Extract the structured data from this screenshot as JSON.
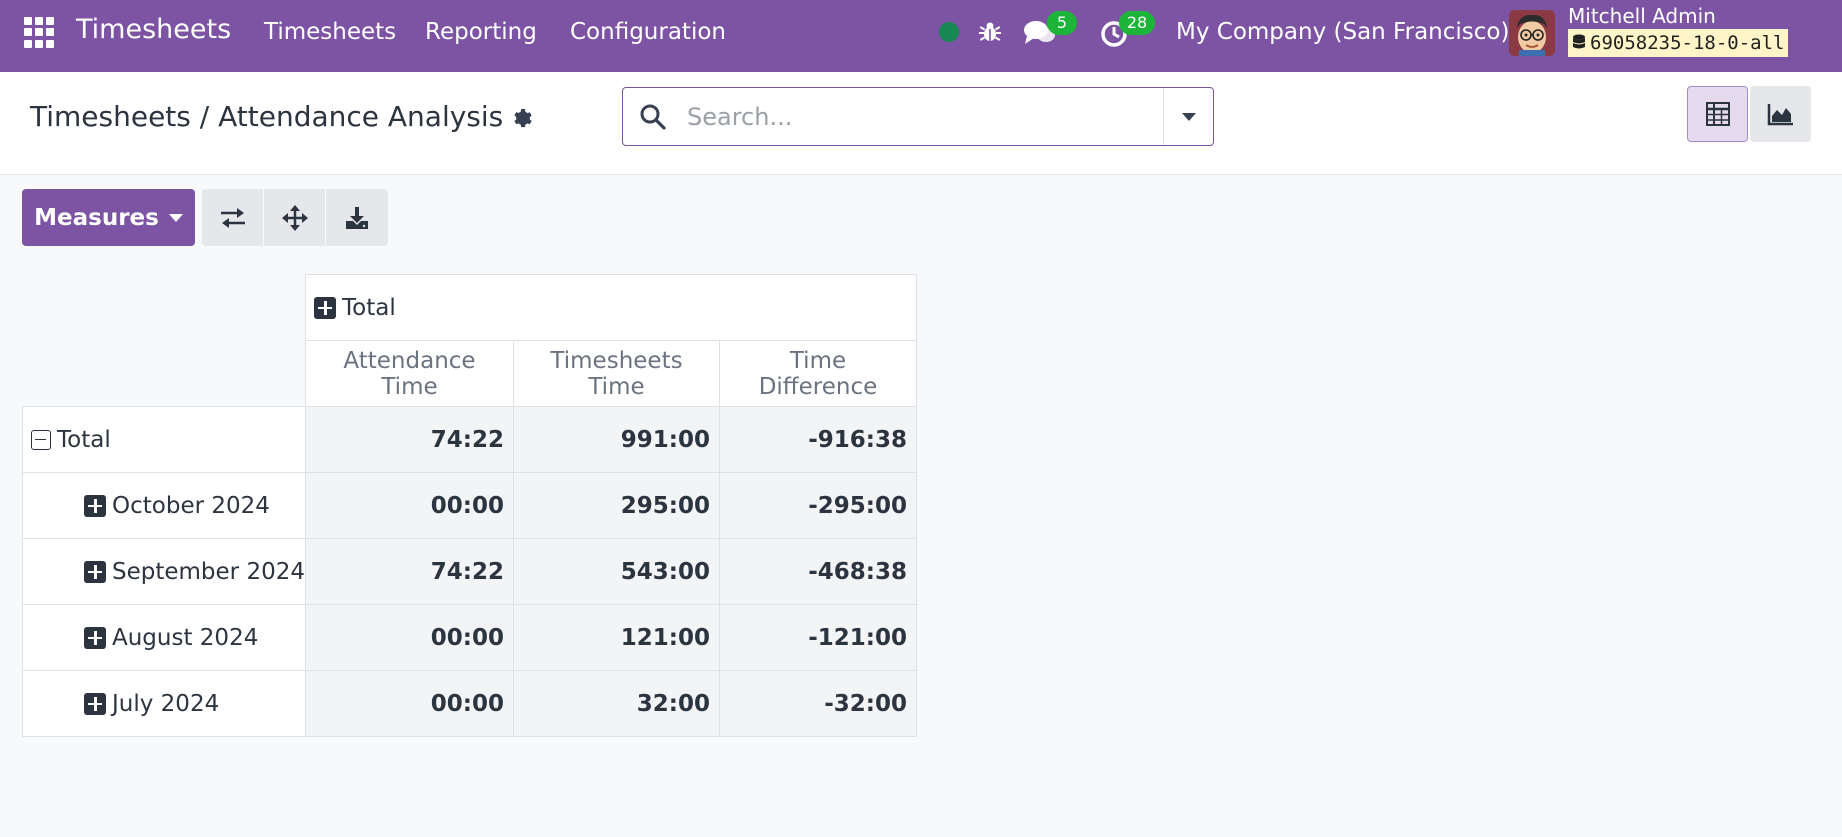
{
  "navbar": {
    "brand": "Timesheets",
    "menu": [
      "Timesheets",
      "Reporting",
      "Configuration"
    ],
    "messages_count": "5",
    "activities_count": "28",
    "company": "My Company (San Francisco)",
    "user_name": "Mitchell Admin",
    "database": "69058235-18-0-all"
  },
  "control_panel": {
    "breadcrumb": "Timesheets / Attendance Analysis",
    "search_placeholder": "Search..."
  },
  "toolbar": {
    "measures_label": "Measures"
  },
  "pivot": {
    "column_header": "Total",
    "measures": [
      "Attendance Time",
      "Timesheets Time",
      "Time Difference"
    ],
    "total_row": {
      "label": "Total",
      "values": [
        "74:22",
        "991:00",
        "-916:38"
      ]
    },
    "rows": [
      {
        "label": "October 2024",
        "values": [
          "00:00",
          "295:00",
          "-295:00"
        ]
      },
      {
        "label": "September 2024",
        "values": [
          "74:22",
          "543:00",
          "-468:38"
        ]
      },
      {
        "label": "August 2024",
        "values": [
          "00:00",
          "121:00",
          "-121:00"
        ]
      },
      {
        "label": "July 2024",
        "values": [
          "00:00",
          "32:00",
          "-32:00"
        ]
      }
    ]
  },
  "colors": {
    "brand_purple": "#7c54a3",
    "badge_green": "#1cb53a",
    "status_green": "#198754"
  }
}
